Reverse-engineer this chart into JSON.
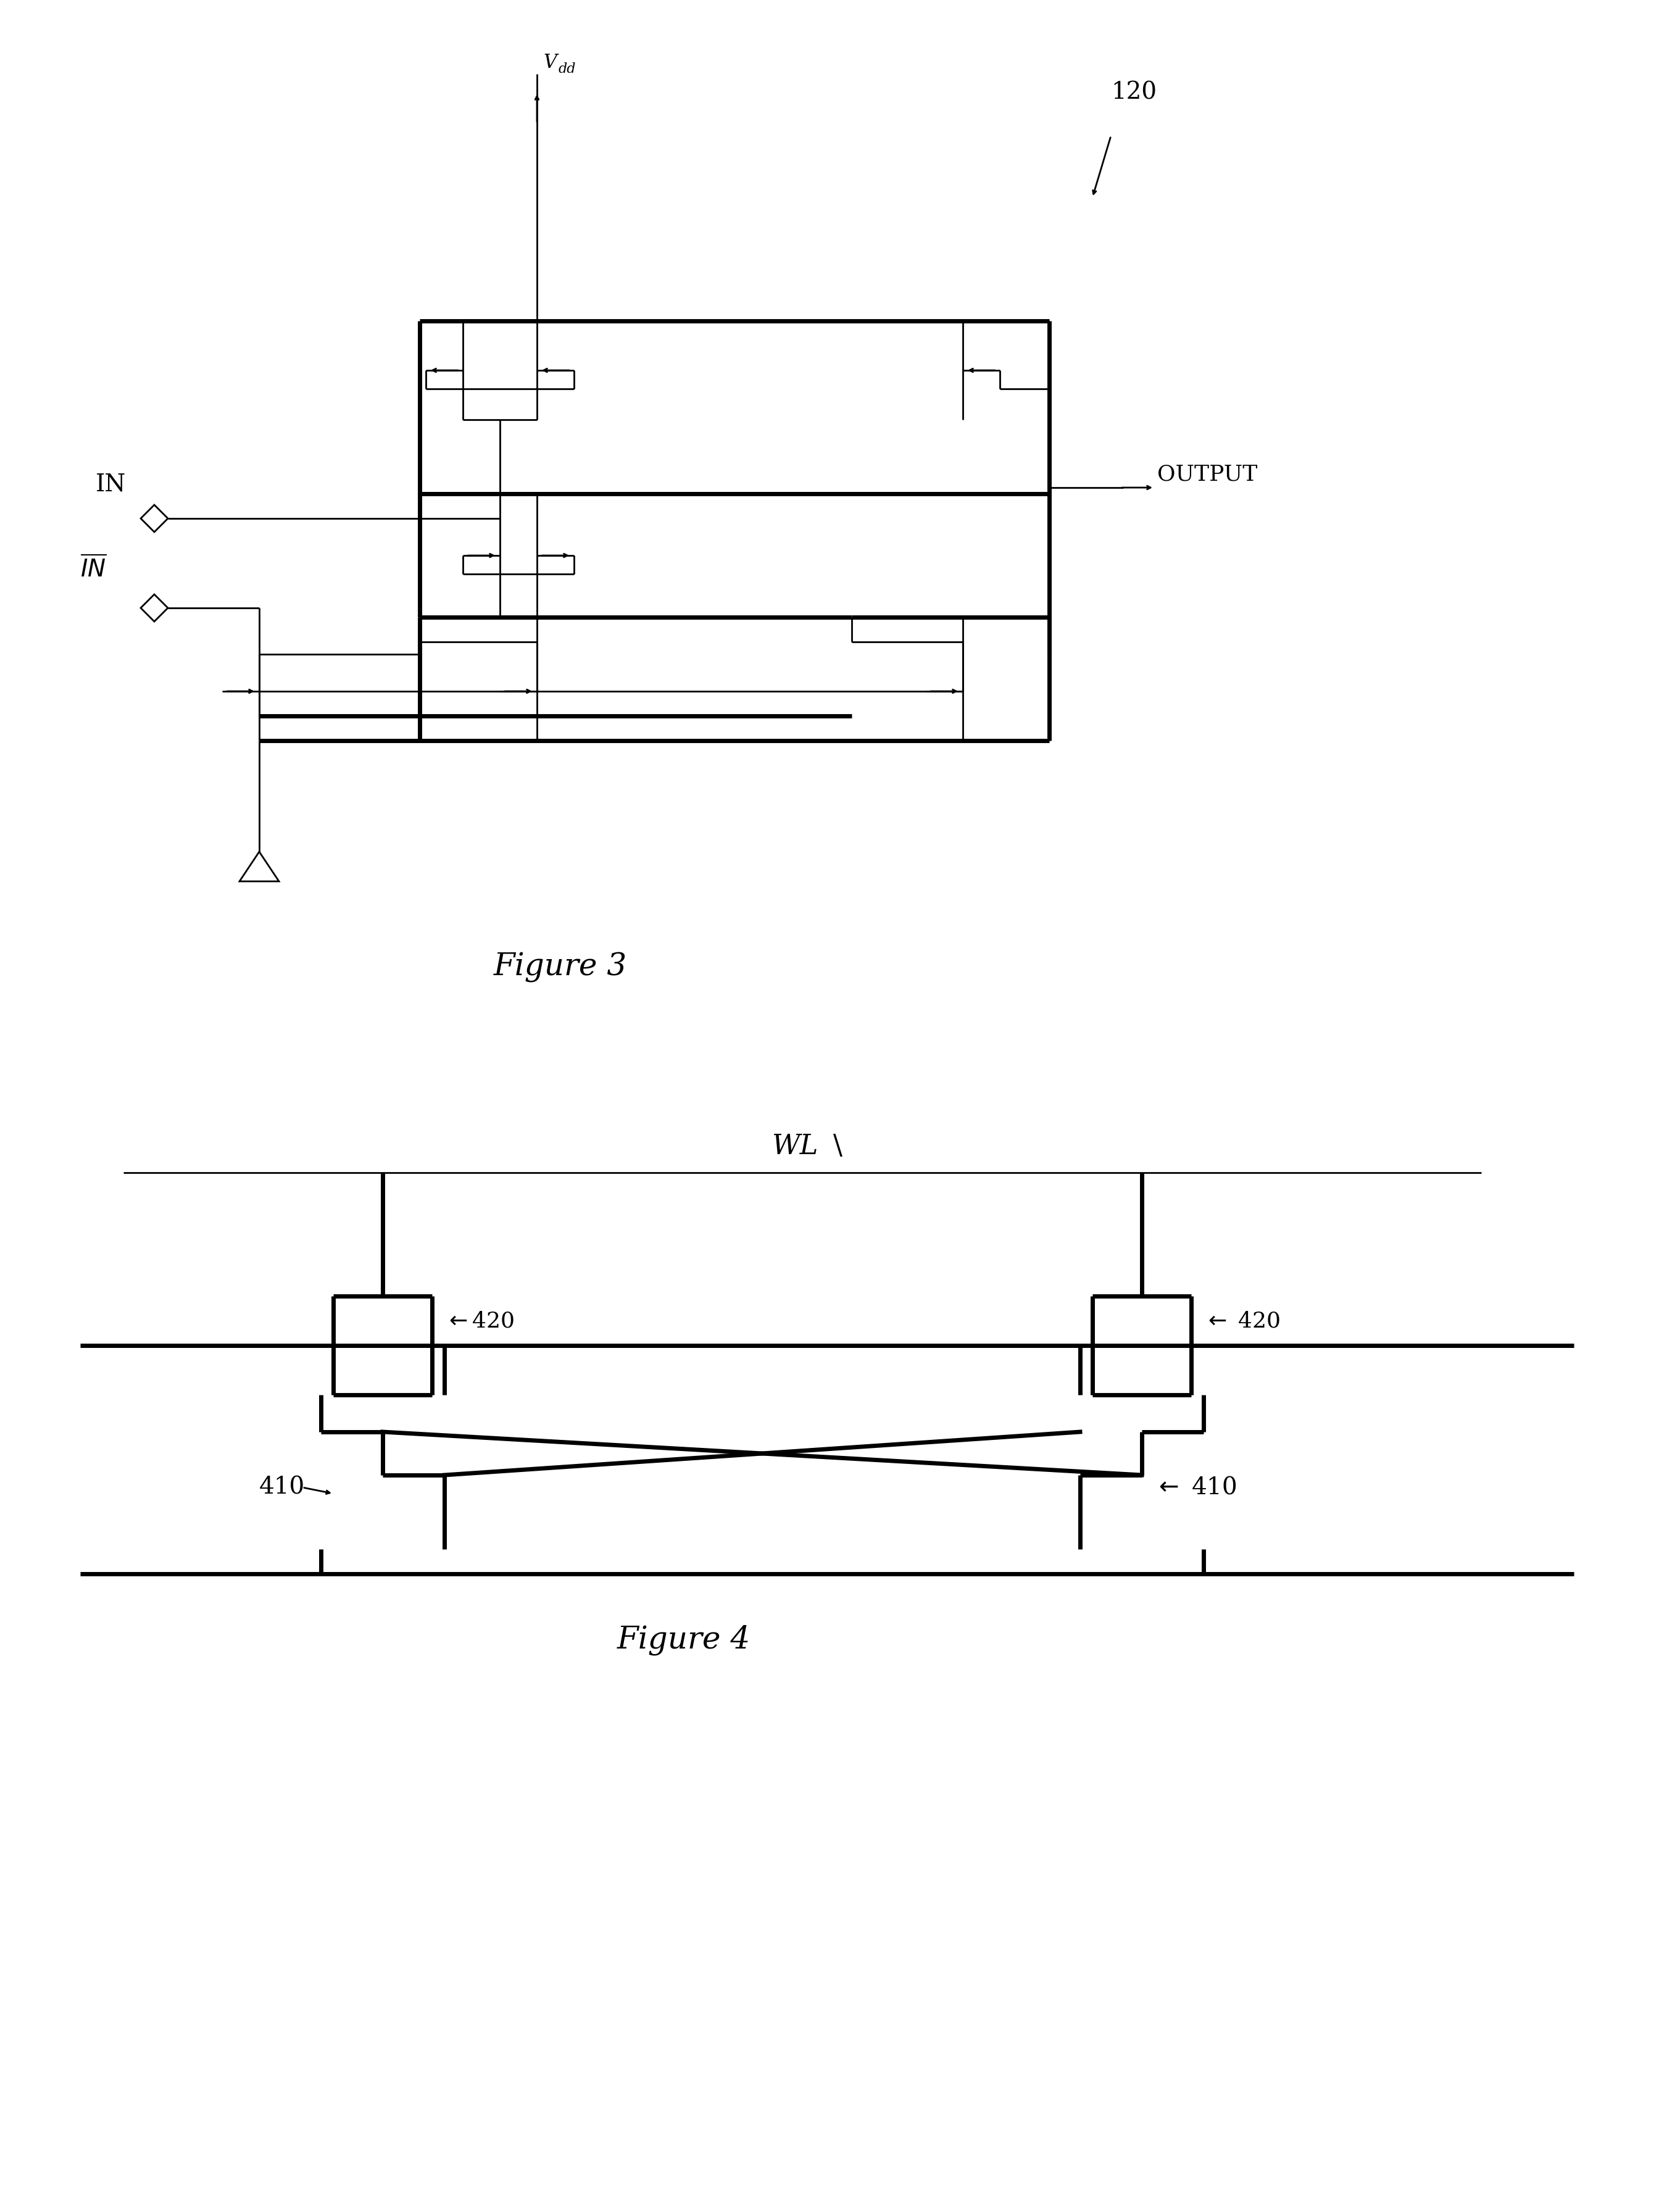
{
  "figure_width": 27.22,
  "figure_height": 35.84,
  "bg_color": "#ffffff",
  "line_color": "#000000",
  "fig3_title": "Figure 3",
  "fig4_title": "Figure 4",
  "label_120": "120",
  "label_vdd": "V",
  "label_vdd_sub": "dd",
  "label_in": "IN",
  "label_in_bar": "IN",
  "label_output": "OUTPUT",
  "label_wl": "WL",
  "label_410a": "410",
  "label_410b": "410",
  "label_420a": "420",
  "label_420b": "420"
}
